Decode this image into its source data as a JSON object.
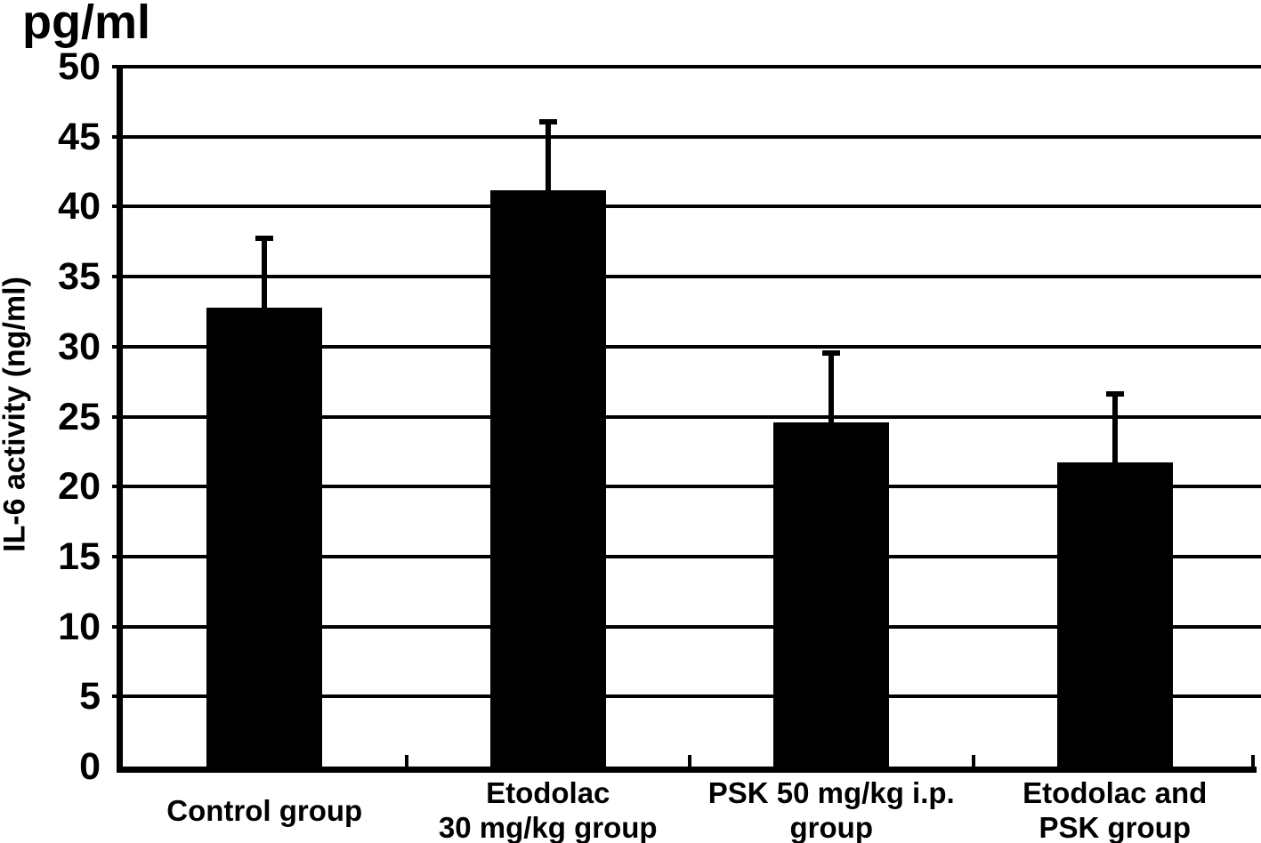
{
  "chart_data": {
    "type": "bar",
    "title": "pg/ml",
    "ylabel": "IL-6 activity (ng/ml)",
    "xlabel": "",
    "categories": [
      "Control group",
      "Etodolac 30 mg/kg group",
      "PSK 50 mg/kg i.p. group",
      "Etodolac and PSK group"
    ],
    "category_label_lines": [
      [
        "Control group"
      ],
      [
        "Etodolac",
        "30 mg/kg group"
      ],
      [
        "PSK 50 mg/kg i.p.",
        "group"
      ],
      [
        "Etodolac and",
        "PSK group"
      ]
    ],
    "values": [
      32.8,
      41.2,
      24.6,
      21.7
    ],
    "error_tops": [
      37.8,
      46.1,
      29.6,
      26.7
    ],
    "y_ticks": [
      0,
      5,
      10,
      15,
      20,
      25,
      30,
      35,
      40,
      45,
      50
    ],
    "ylim": [
      0,
      50
    ],
    "grid": true,
    "legend": "none",
    "bar_color": "#000000",
    "background_color": "#ffffff"
  }
}
